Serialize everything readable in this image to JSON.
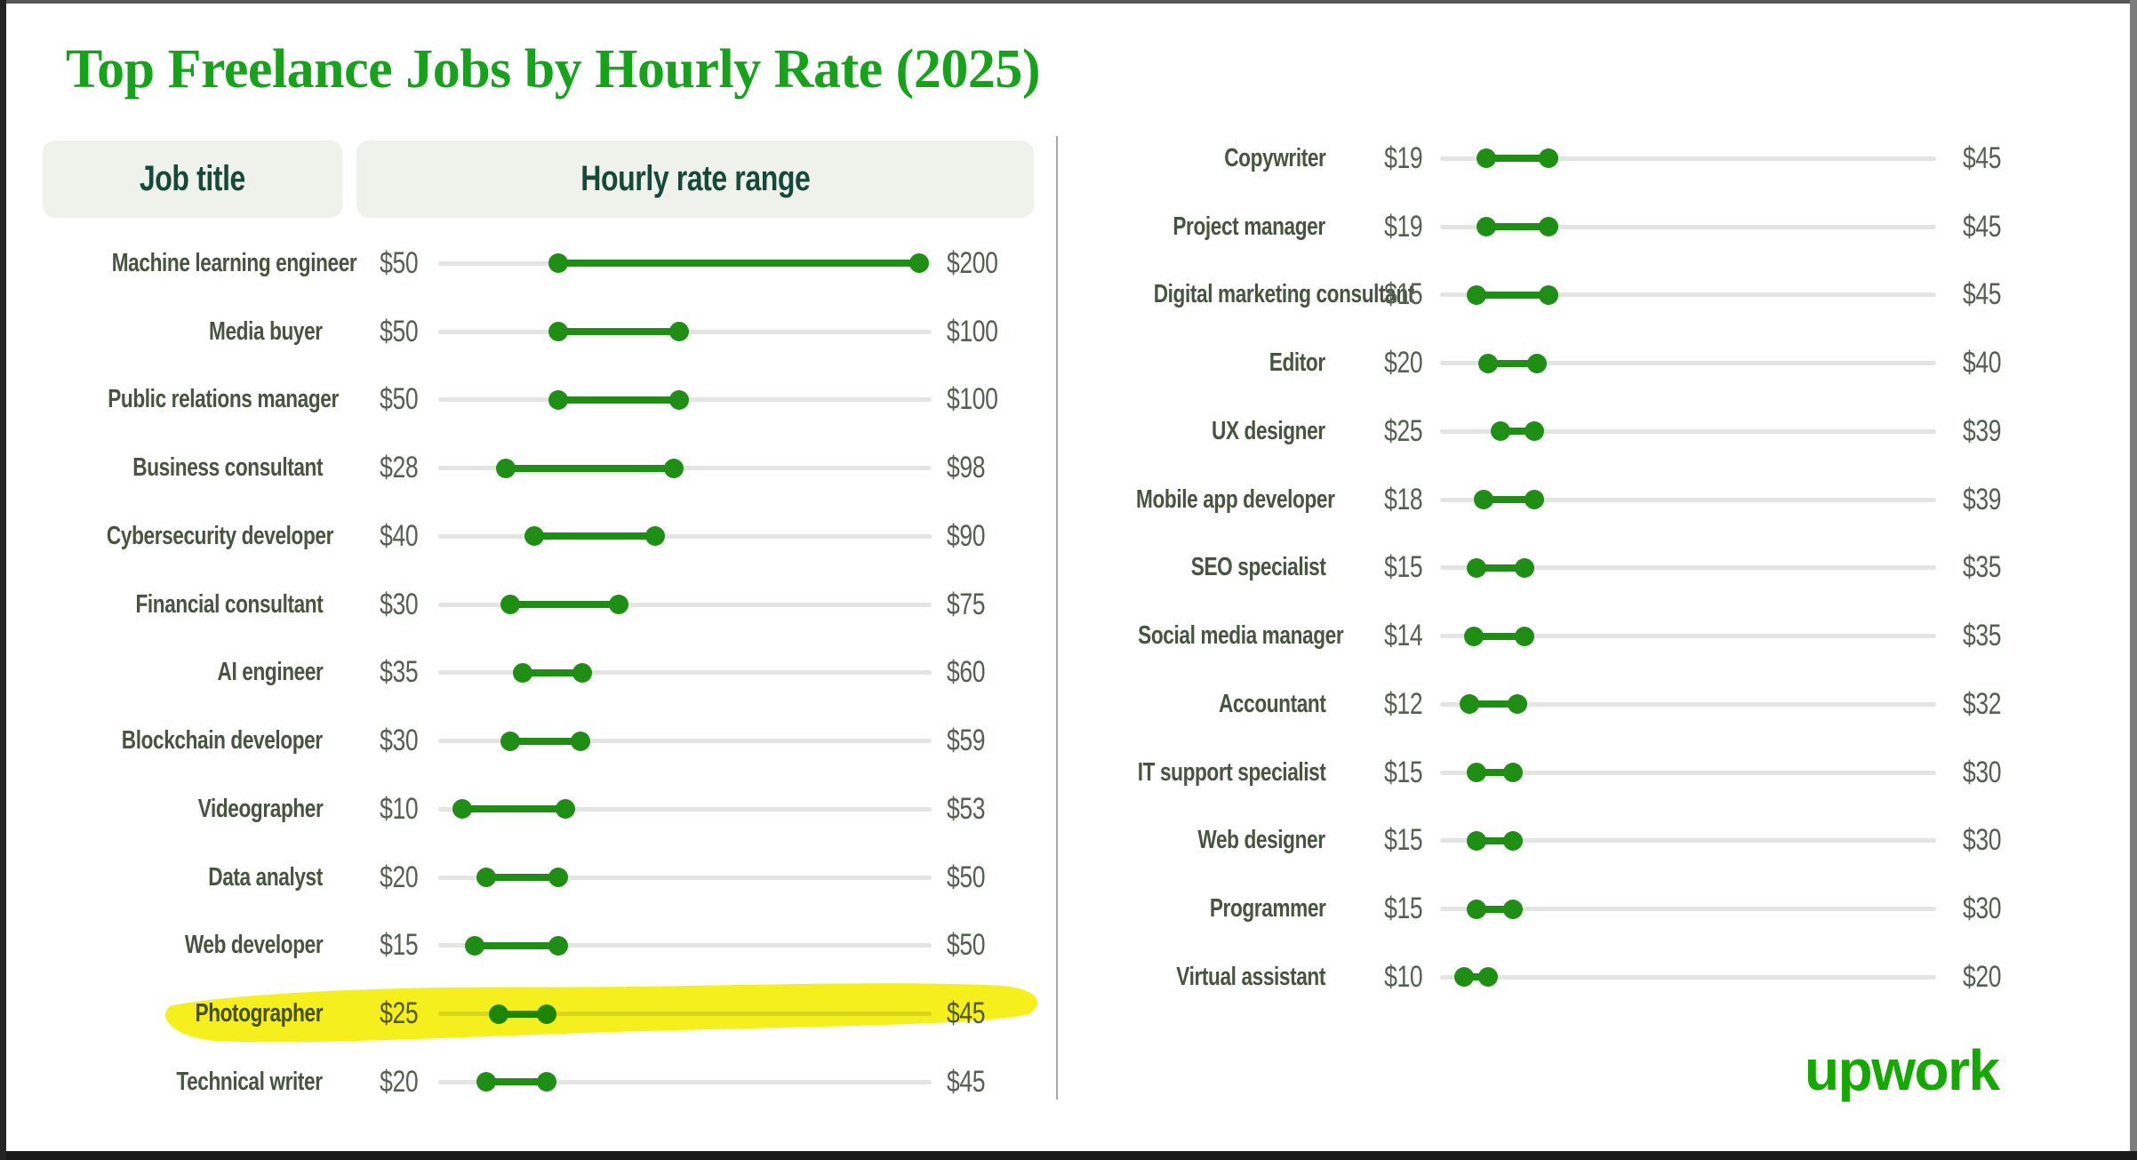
{
  "title": "Top Freelance Jobs by Hourly Rate (2025)",
  "headers": {
    "job_title": "Job title",
    "rate_range": "Hourly rate range"
  },
  "brand": {
    "logo_text": "upwork"
  },
  "colors": {
    "background": "#ffffff",
    "title_green": "#16a31b",
    "brand_green": "#14a800",
    "dumbbell_green": "#1e8e14",
    "track_gray": "#e4e4e2",
    "job_label": "#47543f",
    "price_label": "#566052",
    "header_text": "#15493b",
    "header_band": "#eef2ea",
    "divider": "#a8a8a8",
    "highlight_yellow": "#f4ee0c"
  },
  "chart_data": {
    "type": "dumbbell",
    "title": "Top Freelance Jobs by Hourly Rate (2025)",
    "currency_prefix": "$",
    "unit": "USD per hour",
    "x_axis": {
      "min": 0,
      "max": 205,
      "visible": false
    },
    "highlighted_job": "Photographer",
    "columns": [
      {
        "side": "left",
        "rows": [
          {
            "job": "Machine learning engineer",
            "min": 50,
            "max": 200
          },
          {
            "job": "Media buyer",
            "min": 50,
            "max": 100
          },
          {
            "job": "Public relations manager",
            "min": 50,
            "max": 100
          },
          {
            "job": "Business consultant",
            "min": 28,
            "max": 98
          },
          {
            "job": "Cybersecurity developer",
            "min": 40,
            "max": 90
          },
          {
            "job": "Financial consultant",
            "min": 30,
            "max": 75
          },
          {
            "job": "AI engineer",
            "min": 35,
            "max": 60
          },
          {
            "job": "Blockchain developer",
            "min": 30,
            "max": 59
          },
          {
            "job": "Videographer",
            "min": 10,
            "max": 53
          },
          {
            "job": "Data analyst",
            "min": 20,
            "max": 50
          },
          {
            "job": "Web developer",
            "min": 15,
            "max": 50
          },
          {
            "job": "Photographer",
            "min": 25,
            "max": 45,
            "highlighted": true
          },
          {
            "job": "Technical writer",
            "min": 20,
            "max": 45
          }
        ]
      },
      {
        "side": "right",
        "rows": [
          {
            "job": "Copywriter",
            "min": 19,
            "max": 45
          },
          {
            "job": "Project manager",
            "min": 19,
            "max": 45
          },
          {
            "job": "Digital marketing consultant",
            "min": 15,
            "max": 45
          },
          {
            "job": "Editor",
            "min": 20,
            "max": 40
          },
          {
            "job": "UX designer",
            "min": 25,
            "max": 39
          },
          {
            "job": "Mobile app developer",
            "min": 18,
            "max": 39
          },
          {
            "job": "SEO specialist",
            "min": 15,
            "max": 35
          },
          {
            "job": "Social media manager",
            "min": 14,
            "max": 35
          },
          {
            "job": "Accountant",
            "min": 12,
            "max": 32
          },
          {
            "job": "IT support specialist",
            "min": 15,
            "max": 30
          },
          {
            "job": "Web designer",
            "min": 15,
            "max": 30
          },
          {
            "job": "Programmer",
            "min": 15,
            "max": 30
          },
          {
            "job": "Virtual assistant",
            "min": 10,
            "max": 20
          }
        ]
      }
    ]
  }
}
